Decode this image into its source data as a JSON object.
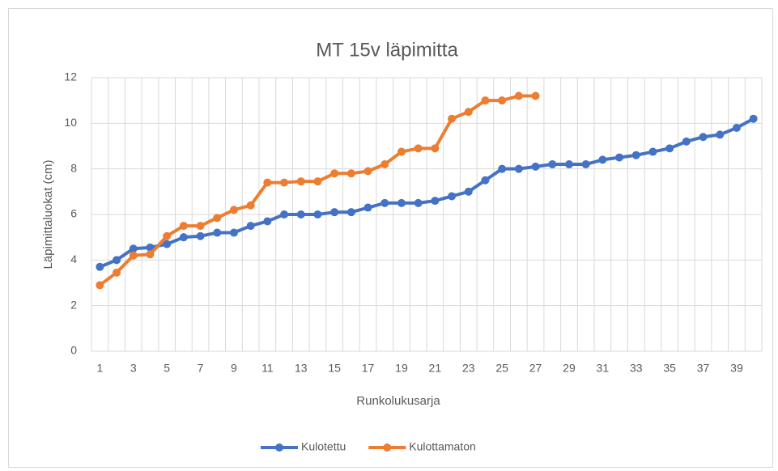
{
  "chart_data": {
    "type": "line",
    "title": "MT 15v läpimitta",
    "x_label": "Runkolukusarja",
    "y_label": "Läpimittaluokat (cm)",
    "categories": [
      1,
      null,
      3,
      null,
      5,
      null,
      7,
      null,
      9,
      null,
      11,
      null,
      13,
      null,
      15,
      null,
      17,
      null,
      19,
      null,
      21,
      null,
      23,
      null,
      25,
      null,
      27,
      null,
      29,
      null,
      31,
      null,
      33,
      null,
      35,
      null,
      37,
      null,
      39,
      null
    ],
    "series": [
      {
        "name": "Kulotettu",
        "color": "#4472c4",
        "values": [
          3.7,
          4.0,
          4.5,
          4.55,
          4.7,
          5.0,
          5.05,
          5.2,
          5.2,
          5.5,
          5.7,
          6.0,
          6.0,
          6.0,
          6.1,
          6.1,
          6.3,
          6.5,
          6.5,
          6.5,
          6.6,
          6.8,
          7.0,
          7.5,
          8.0,
          8.0,
          8.1,
          8.2,
          8.2,
          8.2,
          8.4,
          8.5,
          8.6,
          8.75,
          8.9,
          9.2,
          9.4,
          9.5,
          9.8,
          10.2
        ]
      },
      {
        "name": "Kulottamaton",
        "color": "#ed7d31",
        "values": [
          2.9,
          3.45,
          4.2,
          4.25,
          5.05,
          5.5,
          5.5,
          5.85,
          6.2,
          6.4,
          7.4,
          7.4,
          7.45,
          7.45,
          7.8,
          7.8,
          7.9,
          8.2,
          8.75,
          8.9,
          8.9,
          10.2,
          10.5,
          11.0,
          11.0,
          11.2,
          11.2,
          null,
          null,
          null,
          null,
          null,
          null,
          null,
          null,
          null,
          null,
          null,
          null,
          null
        ]
      }
    ],
    "ylim": [
      0,
      12
    ],
    "yticks": [
      0,
      2,
      4,
      6,
      8,
      10,
      12
    ],
    "grid": true,
    "legend": "bottom"
  }
}
